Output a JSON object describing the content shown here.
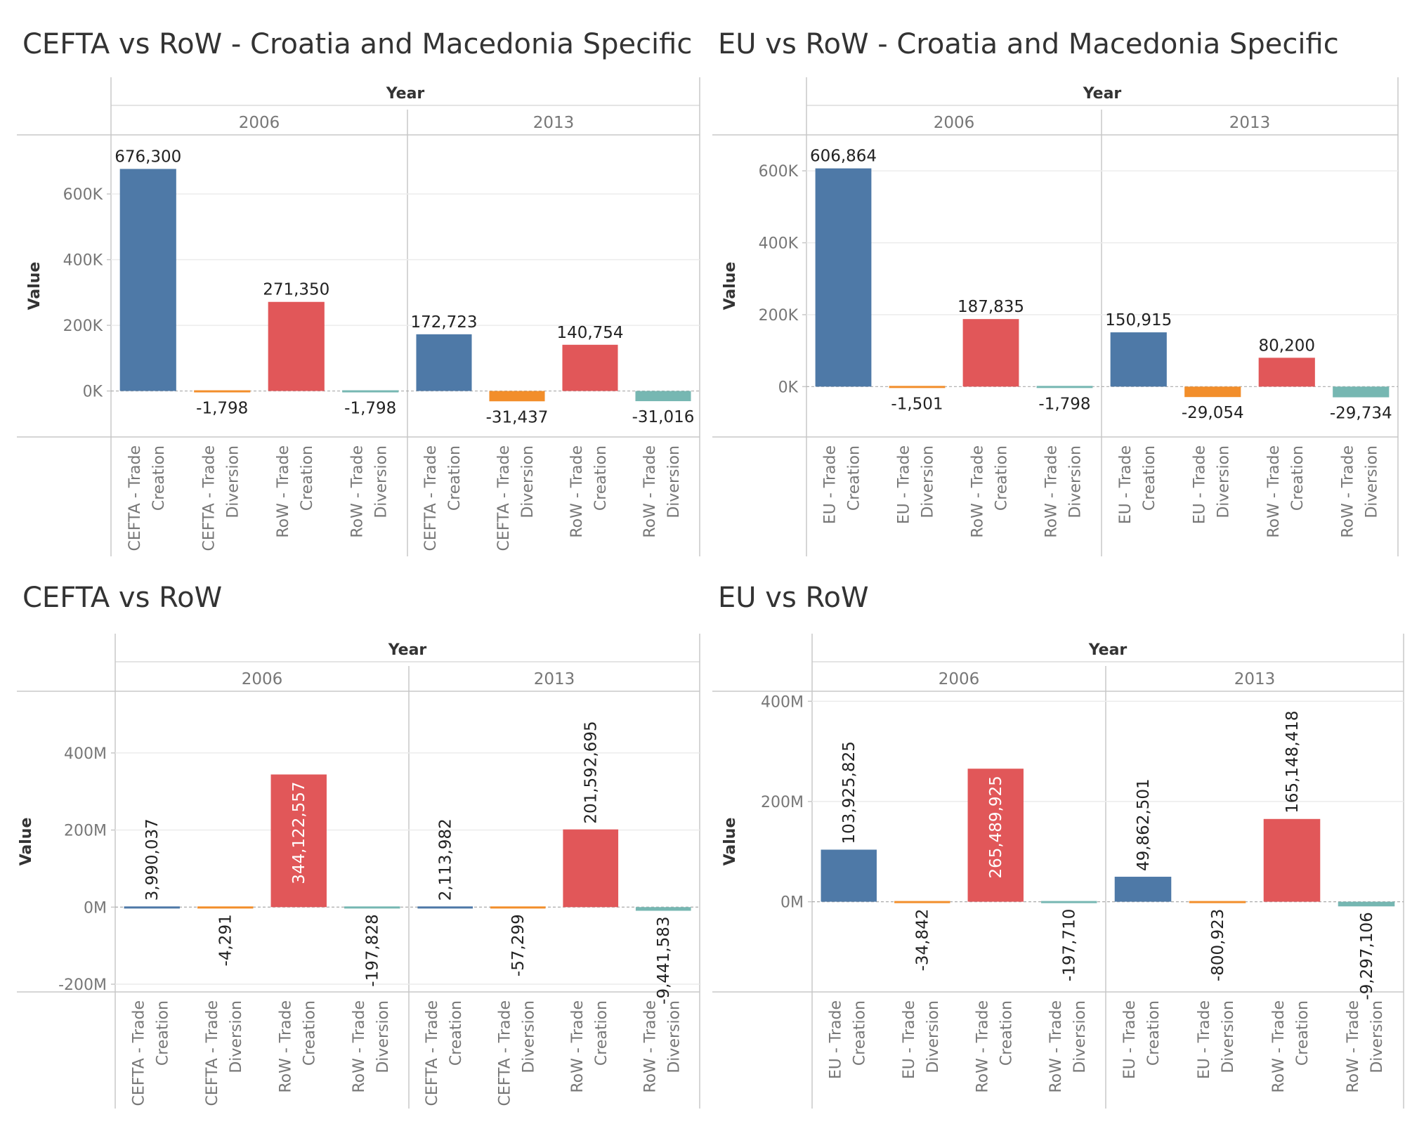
{
  "chart_data": [
    {
      "type": "bar",
      "title": "CEFTA vs RoW - Croatia and Macedonia Specific",
      "column_header": "Year",
      "ylabel": "Value",
      "ylim": [
        -140000,
        780000
      ],
      "y_ticks": [
        0,
        200000,
        400000,
        600000
      ],
      "y_tick_labels": [
        "0K",
        "200K",
        "400K",
        "600K"
      ],
      "years": [
        "2006",
        "2013"
      ],
      "categories": [
        "CEFTA - Trade Creation",
        "CEFTA - Trade Diversion",
        "RoW - Trade Creation",
        "RoW - Trade Diversion"
      ],
      "category_label_lines": [
        [
          "CEFTA - Trade",
          "Creation"
        ],
        [
          "CEFTA - Trade",
          "Diversion"
        ],
        [
          "RoW - Trade",
          "Creation"
        ],
        [
          "RoW - Trade",
          "Diversion"
        ]
      ],
      "values": {
        "2006": [
          676300,
          -1798,
          271350,
          -1798
        ],
        "2013": [
          172723,
          -31437,
          140754,
          -31016
        ]
      },
      "value_labels": {
        "2006": [
          "676,300",
          "-1,798",
          "271,350",
          "-1,798"
        ],
        "2013": [
          "172,723",
          "-31,437",
          "140,754",
          "-31,016"
        ]
      },
      "label_orientation": "horizontal",
      "grid": true,
      "legend": "none"
    },
    {
      "type": "bar",
      "title": "EU vs RoW - Croatia and Macedonia Specific",
      "column_header": "Year",
      "ylabel": "Value",
      "ylim": [
        -140000,
        700000
      ],
      "y_ticks": [
        0,
        200000,
        400000,
        600000
      ],
      "y_tick_labels": [
        "0K",
        "200K",
        "400K",
        "600K"
      ],
      "years": [
        "2006",
        "2013"
      ],
      "categories": [
        "EU - Trade Creation",
        "EU - Trade Diversion",
        "RoW - Trade Creation",
        "RoW - Trade Diversion"
      ],
      "category_label_lines": [
        [
          "EU - Trade",
          "Creation"
        ],
        [
          "EU - Trade",
          "Diversion"
        ],
        [
          "RoW - Trade",
          "Creation"
        ],
        [
          "RoW - Trade",
          "Diversion"
        ]
      ],
      "values": {
        "2006": [
          606864,
          -1501,
          187835,
          -1798
        ],
        "2013": [
          150915,
          -29054,
          80200,
          -29734
        ]
      },
      "value_labels": {
        "2006": [
          "606,864",
          "-1,501",
          "187,835",
          "-1,798"
        ],
        "2013": [
          "150,915",
          "-29,054",
          "80,200",
          "-29,734"
        ]
      },
      "label_orientation": "horizontal",
      "grid": true,
      "legend": "none"
    },
    {
      "type": "bar",
      "title": "CEFTA vs RoW",
      "column_header": "Year",
      "ylabel": "Value",
      "ylim": [
        -220000000,
        560000000
      ],
      "y_ticks": [
        -200000000,
        0,
        200000000,
        400000000
      ],
      "y_tick_labels": [
        "-200M",
        "0M",
        "200M",
        "400M"
      ],
      "years": [
        "2006",
        "2013"
      ],
      "categories": [
        "CEFTA - Trade Creation",
        "CEFTA - Trade Diversion",
        "RoW - Trade Creation",
        "RoW - Trade Diversion"
      ],
      "category_label_lines": [
        [
          "CEFTA - Trade",
          "Creation"
        ],
        [
          "CEFTA - Trade",
          "Diversion"
        ],
        [
          "RoW - Trade",
          "Creation"
        ],
        [
          "RoW - Trade",
          "Diversion"
        ]
      ],
      "values": {
        "2006": [
          3990037,
          -4291,
          344122557,
          -197828
        ],
        "2013": [
          2113982,
          -57299,
          201592695,
          -9441583
        ]
      },
      "value_labels": {
        "2006": [
          "3,990,037",
          "-4,291",
          "344,122,557",
          "-197,828"
        ],
        "2013": [
          "2,113,982",
          "-57,299",
          "201,592,695",
          "-9,441,583"
        ]
      },
      "label_orientation": "vertical",
      "grid": true,
      "legend": "none"
    },
    {
      "type": "bar",
      "title": "EU vs RoW",
      "column_header": "Year",
      "ylabel": "Value",
      "ylim": [
        -180000000,
        420000000
      ],
      "y_ticks": [
        0,
        200000000,
        400000000
      ],
      "y_tick_labels": [
        "0M",
        "200M",
        "400M"
      ],
      "years": [
        "2006",
        "2013"
      ],
      "categories": [
        "EU - Trade Creation",
        "EU - Trade Diversion",
        "RoW - Trade Creation",
        "RoW - Trade Diversion"
      ],
      "category_label_lines": [
        [
          "EU - Trade",
          "Creation"
        ],
        [
          "EU - Trade",
          "Diversion"
        ],
        [
          "RoW - Trade",
          "Creation"
        ],
        [
          "RoW - Trade",
          "Diversion"
        ]
      ],
      "values": {
        "2006": [
          103925825,
          -34842,
          265489925,
          -197710
        ],
        "2013": [
          49862501,
          -800923,
          165148418,
          -9297106
        ]
      },
      "value_labels": {
        "2006": [
          "103,925,825",
          "-34,842",
          "265,489,925",
          "-197,710"
        ],
        "2013": [
          "49,862,501",
          "-800,923",
          "165,148,418",
          "-9,297,106"
        ]
      },
      "label_orientation": "vertical",
      "grid": true,
      "legend": "none"
    }
  ],
  "colors": {
    "trade_creation_primary": "#4e79a7",
    "trade_diversion_primary": "#f28e2b",
    "row_trade_creation": "#e15759",
    "row_trade_diversion": "#76b7b2",
    "grid": "#ececec",
    "axis": "#c8c8c8",
    "text": "#333333",
    "muted_text": "#777777"
  }
}
